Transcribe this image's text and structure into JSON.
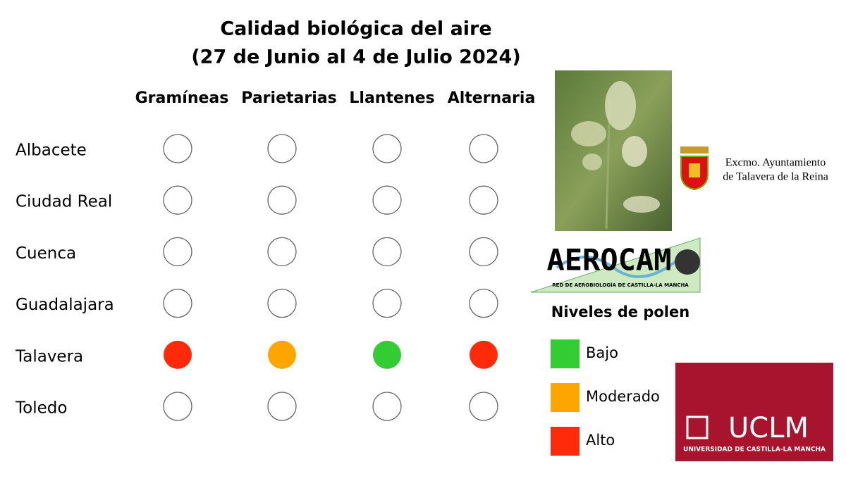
{
  "header": {
    "title_line1": "Calidad biológica del aire",
    "title_line2": "(27 de Junio al 4 de Julio 2024)"
  },
  "table": {
    "columns": [
      "Gramíneas",
      "Parietarias",
      "Llantenes",
      "Alternaria"
    ],
    "rows": [
      {
        "name": "Albacete",
        "colors": [
          null,
          null,
          null,
          null
        ]
      },
      {
        "name": "Ciudad Real",
        "colors": [
          null,
          null,
          null,
          null
        ]
      },
      {
        "name": "Cuenca",
        "colors": [
          null,
          null,
          null,
          null
        ]
      },
      {
        "name": "Guadalajara",
        "colors": [
          null,
          null,
          null,
          null
        ]
      },
      {
        "name": "Talavera",
        "colors": [
          "#ff2a0a",
          "#ffa500",
          "#33cc33",
          "#ff2a0a"
        ]
      },
      {
        "name": "Toledo",
        "colors": [
          null,
          null,
          null,
          null
        ]
      }
    ]
  },
  "legend": {
    "title": "Niveles de polen",
    "items": [
      {
        "label": "Bajo",
        "color": "#33cc33"
      },
      {
        "label": "Moderado",
        "color": "#ffa500"
      },
      {
        "label": "Alto",
        "color": "#ff2a0a"
      }
    ]
  },
  "logos": {
    "ayuntamiento_line1": "Excmo. Ayuntamiento",
    "ayuntamiento_line2": "de Talavera de la Reina",
    "aerocam": "AEROCAM",
    "aerocam_subtitle": "RED DE AEROBIOLOGÍA DE CASTILLA-LA MANCHA",
    "uclm": "UCLM",
    "uclm_subtitle": "UNIVERSIDAD DE CASTILLA-LA MANCHA"
  }
}
